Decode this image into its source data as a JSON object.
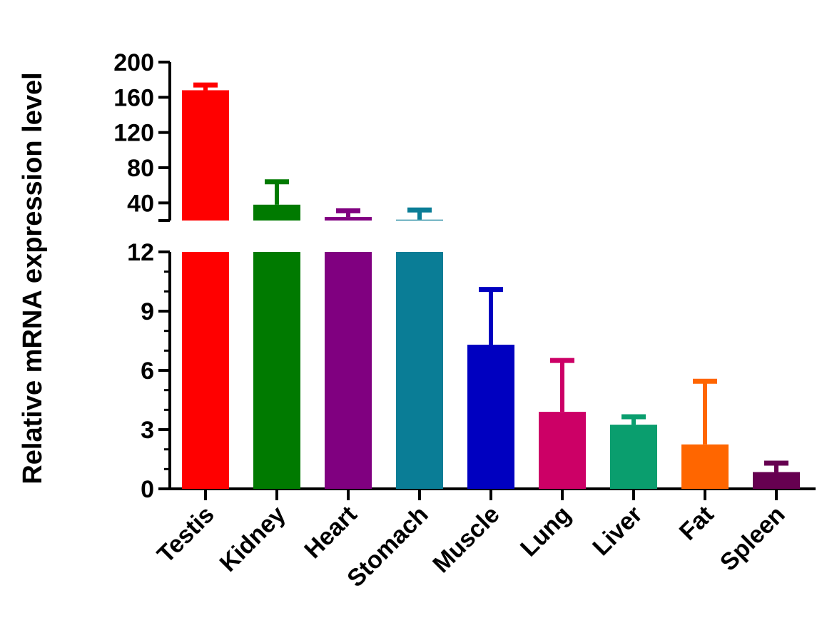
{
  "chart_data": {
    "type": "bar",
    "title": "",
    "xlabel": "",
    "ylabel": "Relative mRNA expression level",
    "axis_break": true,
    "segments": [
      {
        "name": "lower",
        "ylim": [
          0,
          12
        ],
        "ticks": [
          0,
          3,
          6,
          9,
          12
        ]
      },
      {
        "name": "upper",
        "ylim": [
          20,
          200
        ],
        "ticks": [
          40,
          80,
          120,
          160,
          200
        ]
      }
    ],
    "grid": false,
    "legend": "none",
    "categories": [
      "Testis",
      "Kidney",
      "Heart",
      "Stomach",
      "Muscle",
      "Lung",
      "Liver",
      "Fat",
      "Spleen"
    ],
    "values": [
      168,
      38,
      24,
      21,
      7.3,
      3.9,
      3.25,
      2.25,
      0.85
    ],
    "errors": [
      6,
      26,
      7,
      11,
      2.8,
      2.6,
      0.4,
      3.2,
      0.45
    ],
    "colors": [
      "#ff0000",
      "#007a00",
      "#800080",
      "#0a7d96",
      "#0000c0",
      "#cc0066",
      "#0a9e6e",
      "#ff6600",
      "#660050"
    ]
  }
}
